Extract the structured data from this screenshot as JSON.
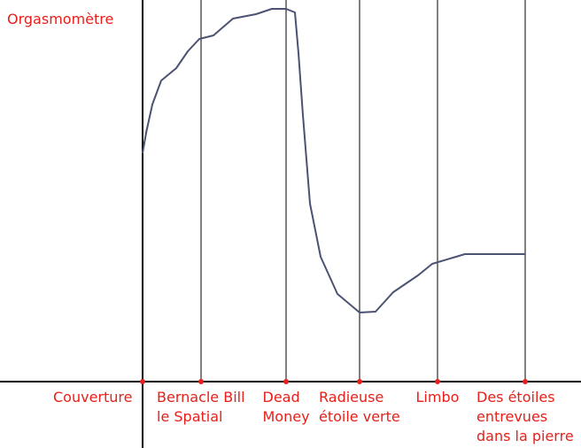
{
  "chart_data": {
    "type": "line",
    "title": "Orgasmomètre",
    "color": "#4b5272",
    "tick_color": "#e8201a",
    "xlim": [
      -161,
      495
    ],
    "ylim": [
      -75,
      431
    ],
    "xticks": [
      {
        "value": 0,
        "label": "Couverture"
      },
      {
        "value": 66,
        "label": "Bernacle Bill\nle Spatial"
      },
      {
        "value": 162,
        "label": "Dead\nMoney"
      },
      {
        "value": 245,
        "label": "Radieuse\nétoile verte"
      },
      {
        "value": 333,
        "label": "Limbo"
      },
      {
        "value": 432,
        "label": "Des étoiles\nentrevues\ndans la pierre"
      }
    ],
    "grid": true,
    "x": [
      0,
      4,
      11,
      21,
      38,
      51,
      64,
      80,
      102,
      128,
      146,
      162,
      172,
      176,
      181,
      189,
      201,
      220,
      245,
      263,
      283,
      311,
      327,
      364,
      432
    ],
    "values": [
      258,
      281,
      313,
      340,
      354,
      373,
      387,
      391,
      410,
      415,
      421,
      421,
      417,
      371,
      301,
      201,
      141,
      99,
      78,
      79,
      101,
      120,
      133,
      144,
      144
    ]
  }
}
